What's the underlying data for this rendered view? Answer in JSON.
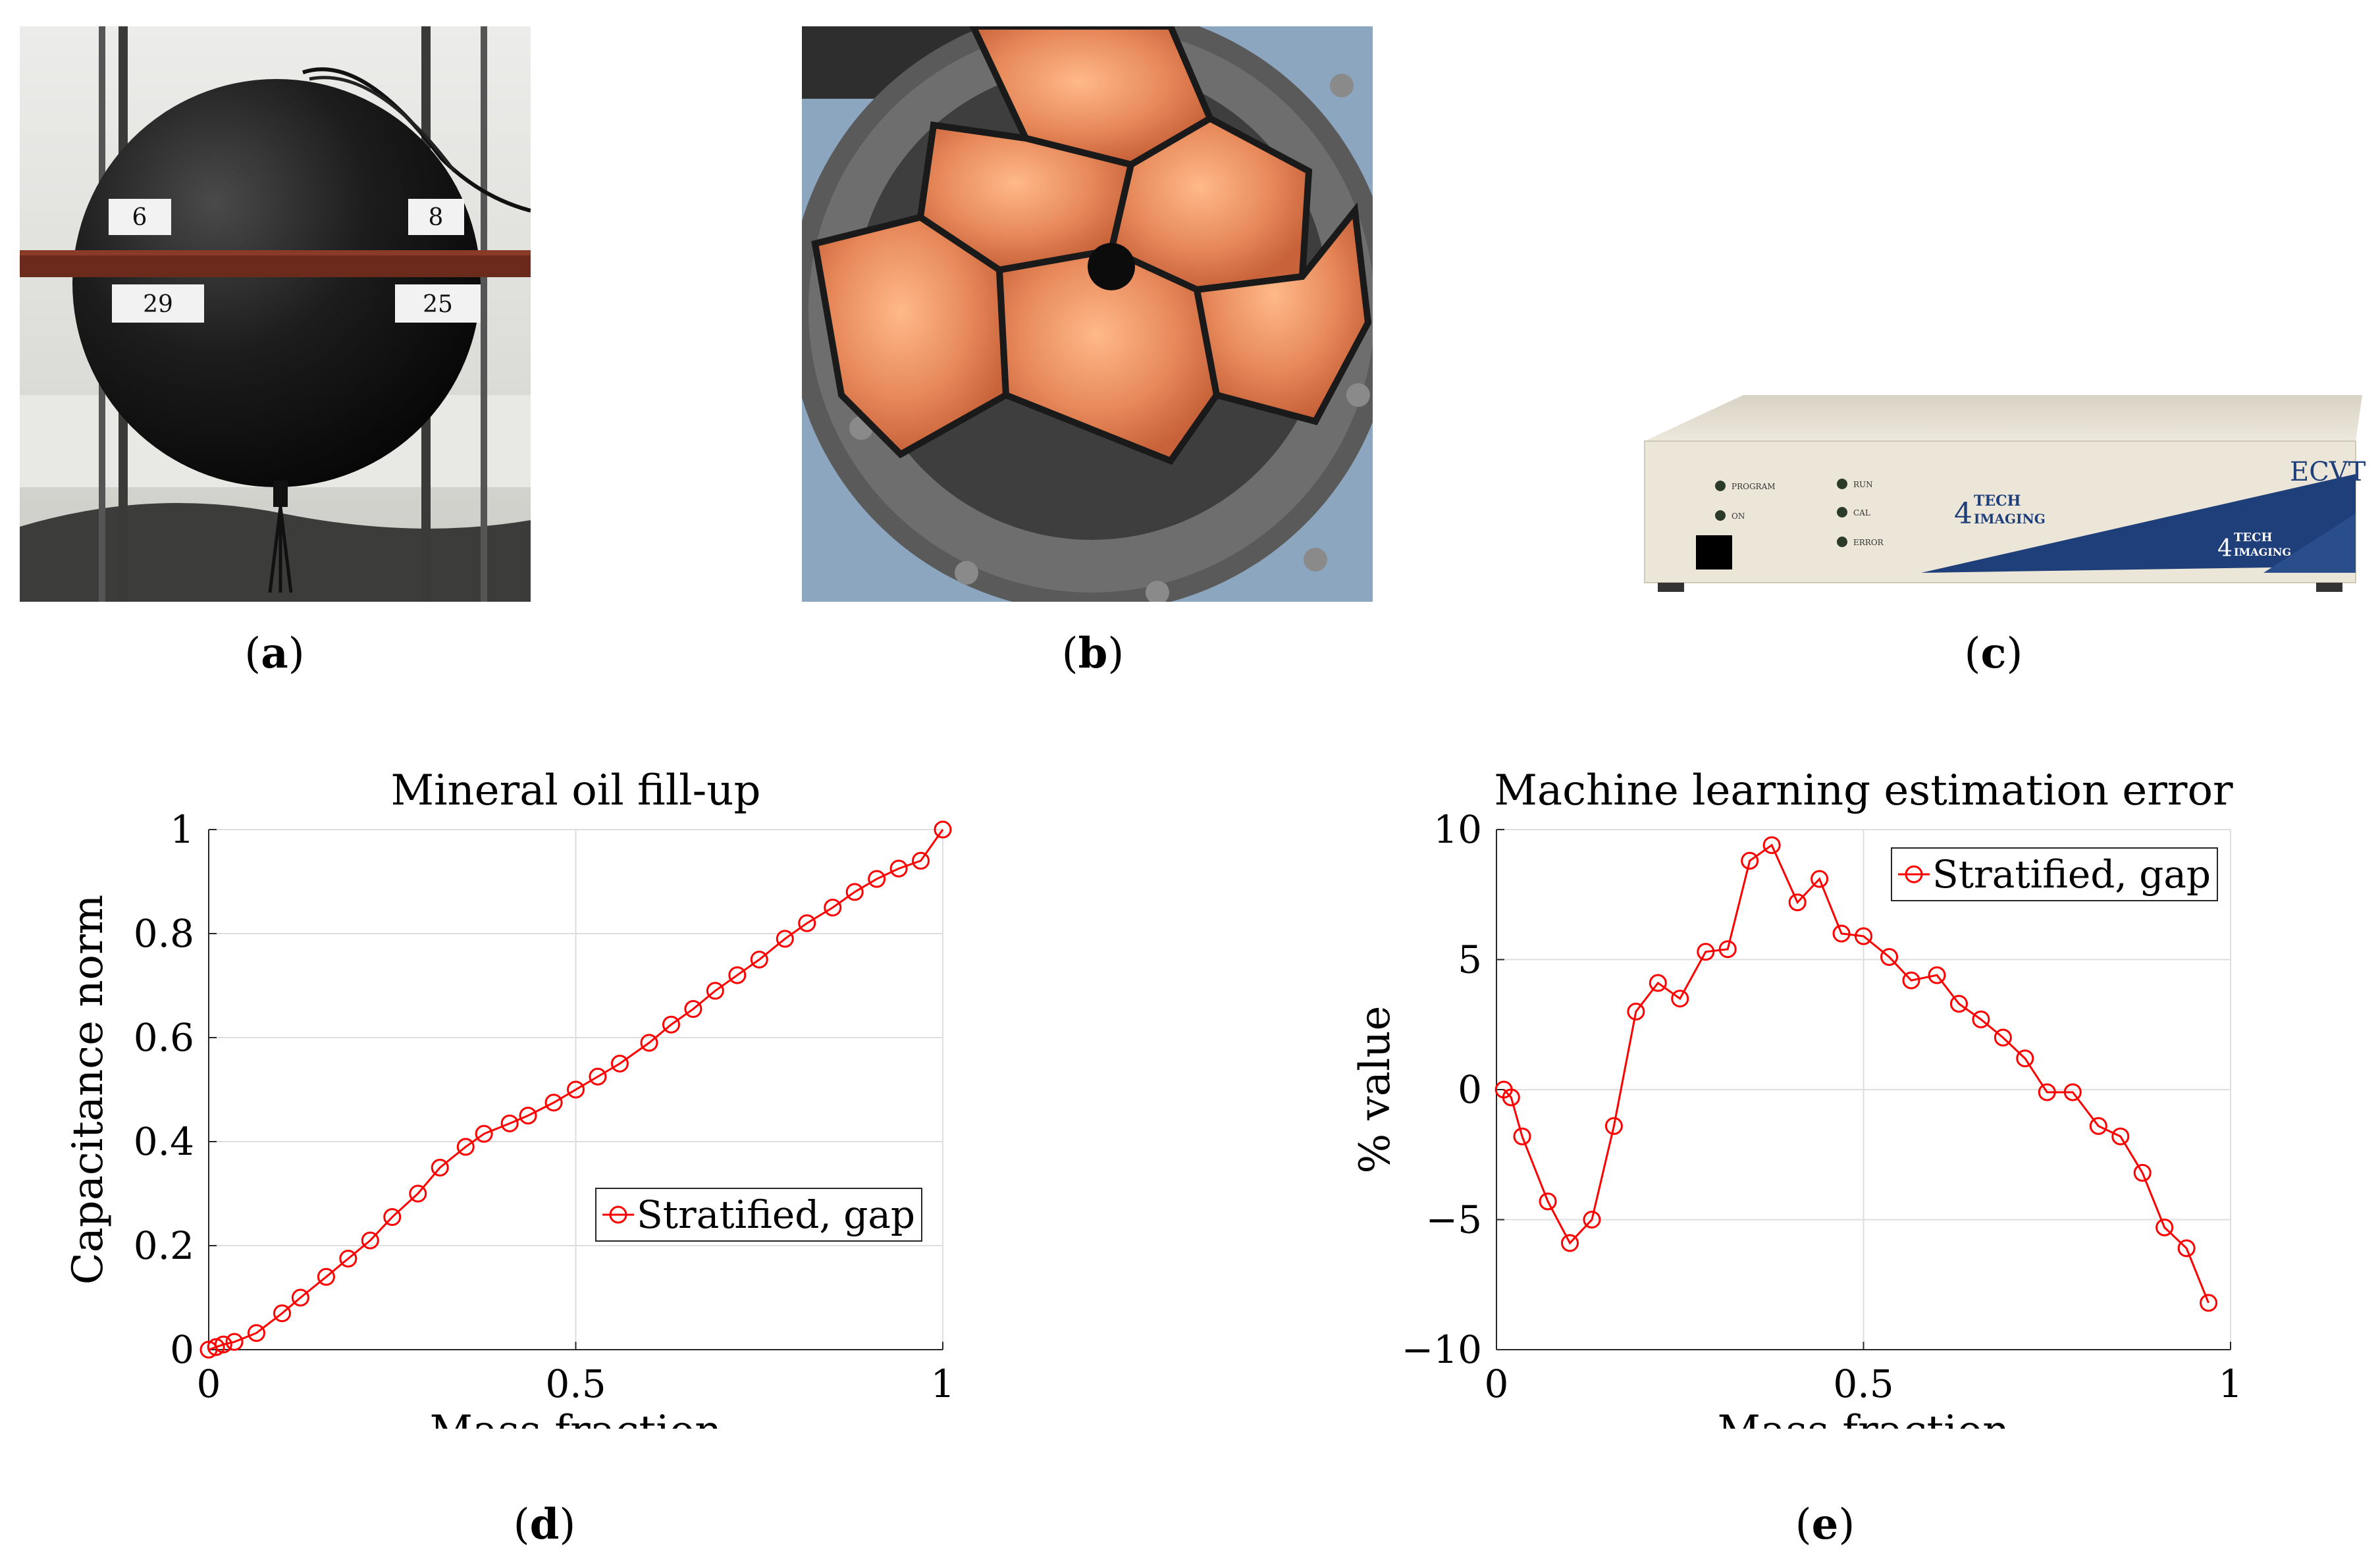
{
  "panels": {
    "a": {
      "label_open": "(",
      "label_letter": "a",
      "label_close": ")"
    },
    "b": {
      "label_open": "(",
      "label_letter": "b",
      "label_close": ")"
    },
    "c": {
      "label_open": "(",
      "label_letter": "c",
      "label_close": ")"
    },
    "d": {
      "label_open": "(",
      "label_letter": "d",
      "label_close": ")"
    },
    "e": {
      "label_open": "(",
      "label_letter": "e",
      "label_close": ")"
    }
  },
  "photo_a": {
    "tags": [
      "6",
      "8",
      "29",
      "25"
    ]
  },
  "photo_c": {
    "device_name": "ECVT",
    "brand_number": "4",
    "brand_top": "TECH",
    "brand_bottom": "IMAGING",
    "indicators": [
      "PROGRAM",
      "ON",
      "RUN",
      "CAL",
      "ERROR"
    ]
  },
  "chart_data": [
    {
      "type": "line",
      "title": "Mineral oil fill-up",
      "xlabel": "Mass fraction",
      "ylabel": "Capacitance norm",
      "xlim": [
        0,
        1
      ],
      "ylim": [
        0,
        1
      ],
      "xticks": [
        0,
        0.5,
        1
      ],
      "xtick_labels": [
        "0",
        "0.5",
        "1"
      ],
      "yticks": [
        0,
        0.2,
        0.4,
        0.6,
        0.8,
        1
      ],
      "ytick_labels": [
        "0",
        "0.2",
        "0.4",
        "0.6",
        "0.8",
        "1"
      ],
      "grid": true,
      "legend_position": "right-middle",
      "color": "#ff0000",
      "series": [
        {
          "name": "Stratified, gap",
          "x": [
            0,
            0.01,
            0.02,
            0.035,
            0.065,
            0.1,
            0.125,
            0.16,
            0.19,
            0.22,
            0.25,
            0.285,
            0.315,
            0.35,
            0.375,
            0.41,
            0.435,
            0.47,
            0.5,
            0.53,
            0.56,
            0.6,
            0.63,
            0.66,
            0.69,
            0.72,
            0.75,
            0.785,
            0.815,
            0.85,
            0.88,
            0.91,
            0.94,
            0.97,
            1.0
          ],
          "y": [
            0,
            0.005,
            0.01,
            0.015,
            0.032,
            0.07,
            0.1,
            0.14,
            0.175,
            0.21,
            0.255,
            0.3,
            0.35,
            0.39,
            0.415,
            0.435,
            0.45,
            0.475,
            0.5,
            0.525,
            0.55,
            0.59,
            0.625,
            0.655,
            0.69,
            0.72,
            0.75,
            0.79,
            0.82,
            0.85,
            0.88,
            0.905,
            0.925,
            0.94,
            1.0
          ]
        }
      ]
    },
    {
      "type": "line",
      "title": "Machine learning estimation error",
      "xlabel": "Mass fraction",
      "ylabel": "% value",
      "xlim": [
        0,
        1
      ],
      "ylim": [
        -10,
        10
      ],
      "xticks": [
        0,
        0.5,
        1
      ],
      "xtick_labels": [
        "0",
        "0.5",
        "1"
      ],
      "yticks": [
        -10,
        -5,
        0,
        5,
        10
      ],
      "ytick_labels": [
        "−10",
        "−5",
        "0",
        "5",
        "10"
      ],
      "grid": true,
      "legend_position": "top-right",
      "color": "#ff0000",
      "series": [
        {
          "name": "Stratified, gap",
          "x": [
            0.01,
            0.02,
            0.035,
            0.07,
            0.1,
            0.13,
            0.16,
            0.19,
            0.22,
            0.25,
            0.285,
            0.315,
            0.345,
            0.375,
            0.41,
            0.44,
            0.47,
            0.5,
            0.535,
            0.565,
            0.6,
            0.63,
            0.66,
            0.69,
            0.72,
            0.75,
            0.785,
            0.82,
            0.85,
            0.88,
            0.91,
            0.94,
            0.97
          ],
          "y": [
            0,
            -0.3,
            -1.8,
            -4.3,
            -5.9,
            -5.0,
            -1.4,
            3.0,
            4.1,
            3.5,
            5.3,
            5.4,
            8.8,
            9.4,
            7.2,
            8.1,
            6.0,
            5.9,
            5.1,
            4.2,
            4.4,
            3.3,
            2.7,
            2.0,
            1.2,
            -0.1,
            -0.1,
            -1.4,
            -1.8,
            -3.2,
            -5.3,
            -6.1,
            -8.2
          ]
        }
      ]
    }
  ]
}
